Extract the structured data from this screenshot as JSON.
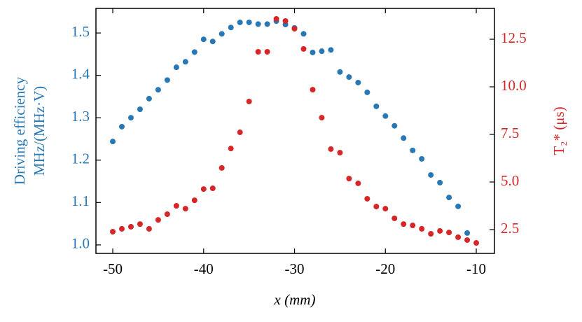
{
  "chart_data": {
    "type": "scatter",
    "xlabel": "x (mm)",
    "ylabel": [
      "Driving efficiency",
      "MHz/(MHz·V)"
    ],
    "y2label": "T₂* (μs)",
    "xlim": [
      -51.85,
      -8.0
    ],
    "xticks": [
      -50,
      -40,
      -30,
      -20,
      -10
    ],
    "ylim": [
      0.98,
      1.558
    ],
    "yticks": [
      {
        "value": 1.0,
        "label": "1.0"
      },
      1.1,
      1.2,
      1.3,
      1.4,
      1.5
    ],
    "y2lim": [
      1.25,
      14.12
    ],
    "y2ticks": [
      2.5,
      {
        "value": 5.0,
        "label": "5.0"
      },
      7.5,
      {
        "value": 10.0,
        "label": "10.0"
      },
      12.5
    ],
    "ycolor": "#2878b5",
    "y2color": "#d62728",
    "grid": false,
    "series": [
      {
        "color": "#2878b5",
        "x": [
          -50,
          -49,
          -48,
          -47,
          -46,
          -45,
          -44,
          -43,
          -42,
          -41,
          -40,
          -39,
          -38,
          -37,
          -36,
          -35,
          -34,
          -33,
          -32,
          -31,
          -30,
          -29,
          -28,
          -27,
          -26,
          -25,
          -24,
          -23,
          -22,
          -21,
          -20,
          -19,
          -18,
          -17,
          -16,
          -15,
          -14,
          -13,
          -12,
          -11
        ],
        "values": [
          1.244,
          1.279,
          1.3,
          1.32,
          1.345,
          1.366,
          1.389,
          1.419,
          1.432,
          1.455,
          1.485,
          1.48,
          1.498,
          1.513,
          1.525,
          1.525,
          1.521,
          1.521,
          1.528,
          1.52,
          1.512,
          1.498,
          1.454,
          1.457,
          1.46,
          1.408,
          1.396,
          1.383,
          1.36,
          1.327,
          1.304,
          1.281,
          1.252,
          1.223,
          1.203,
          1.165,
          1.147,
          1.112,
          1.091,
          1.028
        ]
      },
      {
        "color": "#d62728",
        "axis": "y2",
        "x": [
          -50,
          -49,
          -48,
          -47,
          -46,
          -45,
          -44,
          -43,
          -42,
          -41,
          -40,
          -39,
          -38,
          -37,
          -36,
          -35,
          -34,
          -33,
          -32,
          -31,
          -30,
          -29,
          -28,
          -27,
          -26,
          -25,
          -24,
          -23,
          -22,
          -21,
          -20,
          -19,
          -18,
          -17,
          -16,
          -15,
          -14,
          -13,
          -12,
          -11,
          -10
        ],
        "values": [
          2.39,
          2.54,
          2.65,
          2.79,
          2.54,
          3.01,
          3.31,
          3.75,
          3.6,
          4.04,
          4.63,
          4.67,
          5.74,
          6.76,
          7.61,
          9.23,
          11.84,
          11.84,
          13.57,
          13.46,
          13.05,
          11.99,
          9.85,
          8.38,
          6.73,
          6.54,
          5.18,
          4.93,
          4.12,
          3.71,
          3.6,
          3.09,
          2.79,
          2.72,
          2.54,
          2.28,
          2.43,
          2.35,
          2.1,
          1.95,
          1.8
        ]
      }
    ]
  }
}
